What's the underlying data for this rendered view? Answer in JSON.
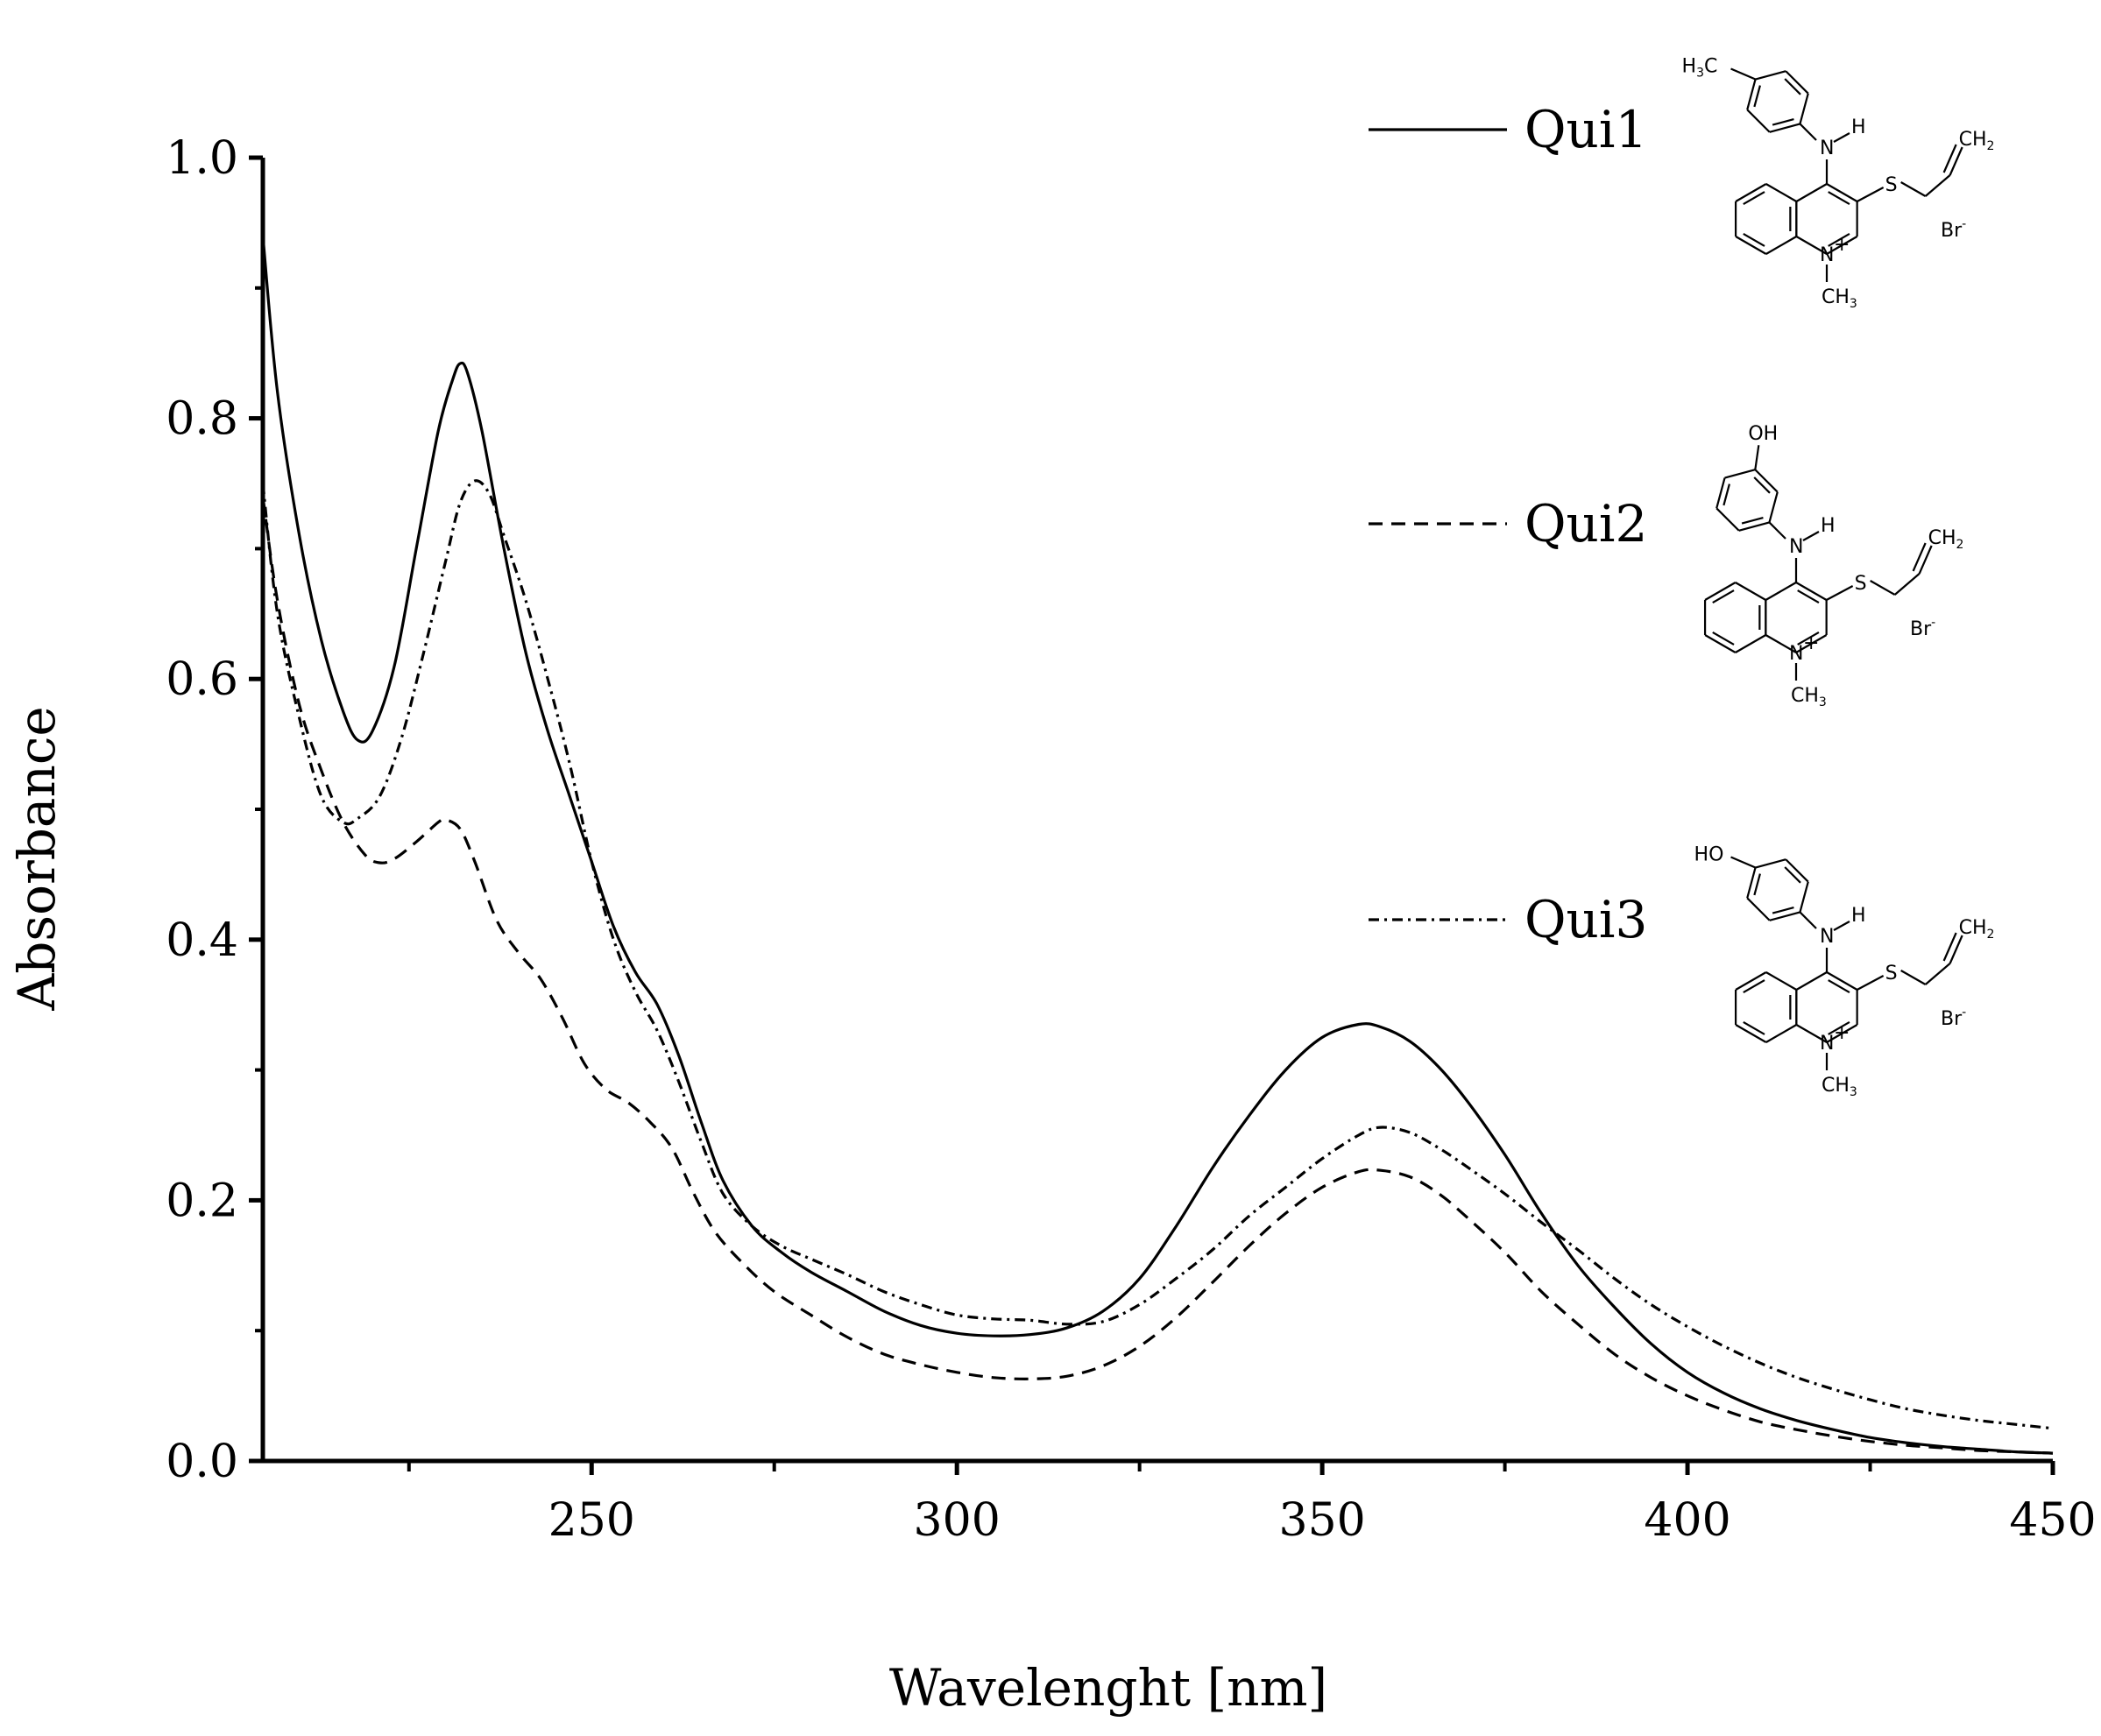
{
  "chart_data": {
    "type": "line",
    "title": "",
    "xlabel": "Wavelenght [nm]",
    "ylabel": "Absorbance",
    "xlim": [
      205,
      450
    ],
    "ylim": [
      0.0,
      1.0
    ],
    "x_ticks": [
      "250",
      "300",
      "350",
      "400",
      "450"
    ],
    "y_ticks": [
      "0.0",
      "0.2",
      "0.4",
      "0.6",
      "0.8",
      "1.0"
    ],
    "grid": false,
    "legend_position": "right",
    "series": [
      {
        "name": "Qui1",
        "line_style": "solid",
        "points": [
          [
            205,
            0.94
          ],
          [
            207,
            0.82
          ],
          [
            210,
            0.71
          ],
          [
            213,
            0.63
          ],
          [
            216,
            0.575
          ],
          [
            218,
            0.553
          ],
          [
            220,
            0.56
          ],
          [
            223,
            0.61
          ],
          [
            226,
            0.7
          ],
          [
            229,
            0.79
          ],
          [
            231,
            0.83
          ],
          [
            232,
            0.842
          ],
          [
            233,
            0.835
          ],
          [
            235,
            0.79
          ],
          [
            238,
            0.7
          ],
          [
            241,
            0.62
          ],
          [
            244,
            0.56
          ],
          [
            247,
            0.51
          ],
          [
            250,
            0.46
          ],
          [
            253,
            0.41
          ],
          [
            256,
            0.375
          ],
          [
            259,
            0.35
          ],
          [
            262,
            0.31
          ],
          [
            265,
            0.26
          ],
          [
            268,
            0.215
          ],
          [
            272,
            0.18
          ],
          [
            276,
            0.16
          ],
          [
            280,
            0.145
          ],
          [
            285,
            0.13
          ],
          [
            290,
            0.115
          ],
          [
            295,
            0.104
          ],
          [
            300,
            0.098
          ],
          [
            305,
            0.096
          ],
          [
            310,
            0.097
          ],
          [
            315,
            0.102
          ],
          [
            320,
            0.115
          ],
          [
            325,
            0.14
          ],
          [
            330,
            0.18
          ],
          [
            335,
            0.225
          ],
          [
            340,
            0.265
          ],
          [
            345,
            0.3
          ],
          [
            350,
            0.325
          ],
          [
            355,
            0.335
          ],
          [
            358,
            0.333
          ],
          [
            362,
            0.322
          ],
          [
            366,
            0.302
          ],
          [
            370,
            0.275
          ],
          [
            375,
            0.235
          ],
          [
            380,
            0.19
          ],
          [
            385,
            0.15
          ],
          [
            390,
            0.118
          ],
          [
            395,
            0.09
          ],
          [
            400,
            0.068
          ],
          [
            405,
            0.052
          ],
          [
            410,
            0.04
          ],
          [
            415,
            0.031
          ],
          [
            420,
            0.024
          ],
          [
            425,
            0.018
          ],
          [
            430,
            0.014
          ],
          [
            435,
            0.011
          ],
          [
            440,
            0.009
          ],
          [
            445,
            0.007
          ],
          [
            450,
            0.006
          ]
        ]
      },
      {
        "name": "Qui2",
        "line_style": "dashed",
        "points": [
          [
            205,
            0.74
          ],
          [
            207,
            0.66
          ],
          [
            210,
            0.58
          ],
          [
            213,
            0.53
          ],
          [
            216,
            0.49
          ],
          [
            219,
            0.465
          ],
          [
            221,
            0.459
          ],
          [
            223,
            0.462
          ],
          [
            226,
            0.475
          ],
          [
            229,
            0.49
          ],
          [
            230,
            0.492
          ],
          [
            232,
            0.485
          ],
          [
            234,
            0.46
          ],
          [
            237,
            0.415
          ],
          [
            240,
            0.39
          ],
          [
            243,
            0.37
          ],
          [
            246,
            0.34
          ],
          [
            249,
            0.305
          ],
          [
            252,
            0.285
          ],
          [
            255,
            0.275
          ],
          [
            258,
            0.26
          ],
          [
            261,
            0.24
          ],
          [
            264,
            0.205
          ],
          [
            267,
            0.175
          ],
          [
            271,
            0.15
          ],
          [
            275,
            0.13
          ],
          [
            280,
            0.112
          ],
          [
            285,
            0.095
          ],
          [
            290,
            0.082
          ],
          [
            295,
            0.074
          ],
          [
            300,
            0.068
          ],
          [
            305,
            0.064
          ],
          [
            310,
            0.063
          ],
          [
            315,
            0.065
          ],
          [
            320,
            0.073
          ],
          [
            325,
            0.088
          ],
          [
            330,
            0.11
          ],
          [
            335,
            0.137
          ],
          [
            340,
            0.165
          ],
          [
            345,
            0.19
          ],
          [
            350,
            0.21
          ],
          [
            355,
            0.222
          ],
          [
            358,
            0.223
          ],
          [
            362,
            0.218
          ],
          [
            366,
            0.205
          ],
          [
            370,
            0.186
          ],
          [
            375,
            0.16
          ],
          [
            380,
            0.13
          ],
          [
            385,
            0.105
          ],
          [
            390,
            0.082
          ],
          [
            395,
            0.064
          ],
          [
            400,
            0.05
          ],
          [
            405,
            0.039
          ],
          [
            410,
            0.03
          ],
          [
            415,
            0.024
          ],
          [
            420,
            0.019
          ],
          [
            425,
            0.015
          ],
          [
            430,
            0.012
          ],
          [
            435,
            0.01
          ],
          [
            440,
            0.008
          ],
          [
            445,
            0.007
          ],
          [
            450,
            0.006
          ]
        ]
      },
      {
        "name": "Qui3",
        "line_style": "dash-dot",
        "points": [
          [
            205,
            0.75
          ],
          [
            207,
            0.65
          ],
          [
            210,
            0.57
          ],
          [
            213,
            0.51
          ],
          [
            216,
            0.49
          ],
          [
            218,
            0.493
          ],
          [
            221,
            0.51
          ],
          [
            224,
            0.555
          ],
          [
            227,
            0.62
          ],
          [
            230,
            0.69
          ],
          [
            232,
            0.735
          ],
          [
            234,
            0.752
          ],
          [
            236,
            0.742
          ],
          [
            238,
            0.71
          ],
          [
            241,
            0.66
          ],
          [
            244,
            0.6
          ],
          [
            247,
            0.535
          ],
          [
            250,
            0.46
          ],
          [
            253,
            0.4
          ],
          [
            256,
            0.36
          ],
          [
            259,
            0.33
          ],
          [
            262,
            0.29
          ],
          [
            265,
            0.245
          ],
          [
            268,
            0.205
          ],
          [
            272,
            0.18
          ],
          [
            276,
            0.165
          ],
          [
            280,
            0.155
          ],
          [
            285,
            0.143
          ],
          [
            290,
            0.13
          ],
          [
            295,
            0.12
          ],
          [
            300,
            0.112
          ],
          [
            305,
            0.109
          ],
          [
            310,
            0.108
          ],
          [
            315,
            0.105
          ],
          [
            320,
            0.107
          ],
          [
            325,
            0.12
          ],
          [
            330,
            0.14
          ],
          [
            335,
            0.162
          ],
          [
            340,
            0.188
          ],
          [
            345,
            0.21
          ],
          [
            350,
            0.232
          ],
          [
            355,
            0.25
          ],
          [
            358,
            0.256
          ],
          [
            362,
            0.252
          ],
          [
            366,
            0.24
          ],
          [
            370,
            0.225
          ],
          [
            375,
            0.205
          ],
          [
            380,
            0.183
          ],
          [
            385,
            0.162
          ],
          [
            390,
            0.14
          ],
          [
            395,
            0.12
          ],
          [
            400,
            0.103
          ],
          [
            405,
            0.088
          ],
          [
            410,
            0.075
          ],
          [
            415,
            0.064
          ],
          [
            420,
            0.055
          ],
          [
            425,
            0.047
          ],
          [
            430,
            0.04
          ],
          [
            435,
            0.035
          ],
          [
            440,
            0.031
          ],
          [
            445,
            0.028
          ],
          [
            450,
            0.025
          ]
        ]
      }
    ]
  },
  "structures": [
    {
      "compound": "Qui1",
      "substituent": "H3C",
      "nh": [
        "N",
        "H"
      ],
      "s": "S",
      "ch2": "CH2",
      "n_ring": "N",
      "n_plus": "+",
      "n_methyl": "CH3",
      "counterion": "Br-"
    },
    {
      "compound": "Qui2",
      "substituent": "OH",
      "nh": [
        "N",
        "H"
      ],
      "s": "S",
      "ch2": "CH2",
      "n_ring": "N",
      "n_plus": "+",
      "n_methyl": "CH3",
      "counterion": "Br-"
    },
    {
      "compound": "Qui3",
      "substituent": "HO",
      "nh": [
        "N",
        "H"
      ],
      "s": "S",
      "ch2": "CH2",
      "n_ring": "N",
      "n_plus": "+",
      "n_methyl": "CH3",
      "counterion": "Br-"
    }
  ]
}
